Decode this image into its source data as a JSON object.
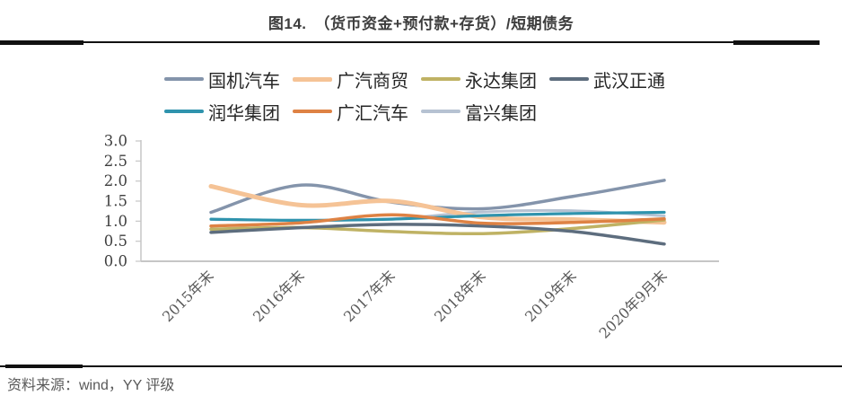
{
  "header": {
    "title": "图14.　（货币资金+预付款+存货）/短期债务"
  },
  "footer": {
    "source": "资料来源：wind，YY 评级"
  },
  "chart_data": {
    "type": "line",
    "smooth": true,
    "title": "（货币资金+预付款+存货）/短期债务",
    "categories": [
      "2015年末",
      "2016年末",
      "2017年末",
      "2018年末",
      "2019年末",
      "2020年9月末"
    ],
    "ylim": [
      0.0,
      3.0
    ],
    "ytick_step": 0.5,
    "ytick_labels": [
      "0.0",
      "0.5",
      "1.0",
      "1.5",
      "2.0",
      "2.5",
      "3.0"
    ],
    "legend_position": "top",
    "grid": false,
    "axis_color": "#c6c6c6",
    "ylabel_color": "#3f3f3f",
    "xlabel_color": "#595959",
    "series": [
      {
        "name": "国机汽车",
        "color": "#8494ab",
        "line_width": 3.5,
        "z": 1,
        "values": [
          1.22,
          1.9,
          1.47,
          1.31,
          1.62,
          2.02
        ]
      },
      {
        "name": "广汽商贸",
        "color": "#f5c396",
        "line_width": 5.0,
        "z": 2,
        "values": [
          1.87,
          1.4,
          1.5,
          1.1,
          1.04,
          0.97
        ]
      },
      {
        "name": "永达集团",
        "color": "#bfb264",
        "line_width": 3.5,
        "z": 3,
        "values": [
          0.8,
          0.84,
          0.74,
          0.69,
          0.82,
          1.03
        ]
      },
      {
        "name": "武汉正通",
        "color": "#5d6d7e",
        "line_width": 3.5,
        "z": 4,
        "values": [
          0.72,
          0.84,
          0.92,
          0.88,
          0.74,
          0.43
        ]
      },
      {
        "name": "润华集团",
        "color": "#2f93ad",
        "line_width": 3.2,
        "z": 5,
        "values": [
          1.05,
          1.02,
          1.05,
          1.14,
          1.19,
          1.22
        ]
      },
      {
        "name": "广汇汽车",
        "color": "#de8244",
        "line_width": 3.5,
        "z": 6,
        "values": [
          0.88,
          0.96,
          1.16,
          0.95,
          0.97,
          1.06
        ]
      },
      {
        "name": "富兴集团",
        "color": "#b6c2d2",
        "line_width": 3.0,
        "z": 0,
        "values": [
          1.04,
          1.02,
          1.06,
          1.23,
          1.26,
          1.13
        ]
      }
    ]
  }
}
